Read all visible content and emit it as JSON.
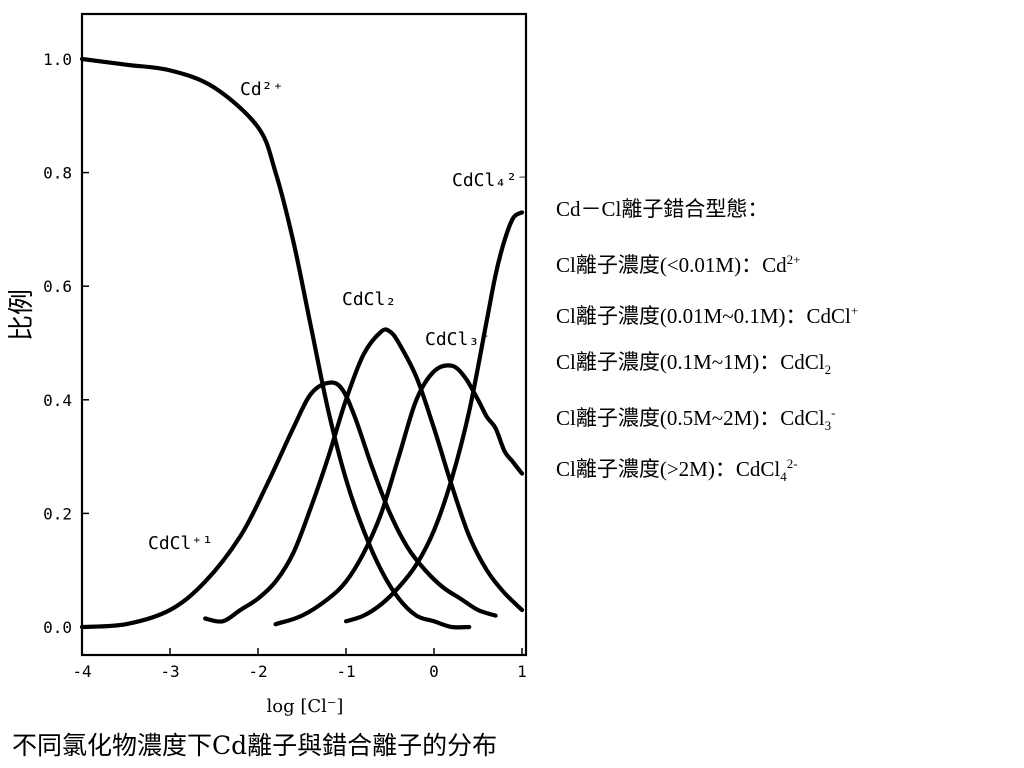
{
  "chart_data": {
    "type": "line",
    "title": "",
    "xlabel": "log [Cl⁻]",
    "ylabel": "比例",
    "xlim": [
      -4,
      1
    ],
    "ylim": [
      0,
      1.0
    ],
    "x_ticks": [
      -4,
      -3,
      -2,
      -1,
      0,
      1
    ],
    "x_tick_labels": [
      "-4",
      "-3",
      "-2",
      "-1",
      "0",
      "1"
    ],
    "y_ticks": [
      0,
      0.2,
      0.4,
      0.6,
      0.8,
      1.0
    ],
    "y_tick_labels": [
      "0.0",
      "0.2",
      "0.4",
      "0.6",
      "0.8",
      "1.0"
    ],
    "grid": false,
    "legend": "none",
    "series": [
      {
        "name": "Cd²⁺",
        "x": [
          -4,
          -3.5,
          -3,
          -2.5,
          -2,
          -1.8,
          -1.6,
          -1.4,
          -1.2,
          -1,
          -0.8,
          -0.6,
          -0.4,
          -0.2,
          0,
          0.2,
          0.4
        ],
        "y": [
          1.0,
          0.99,
          0.98,
          0.95,
          0.88,
          0.8,
          0.68,
          0.53,
          0.38,
          0.26,
          0.17,
          0.1,
          0.05,
          0.02,
          0.01,
          0.0,
          0.0
        ]
      },
      {
        "name": "CdCl⁺",
        "x": [
          -4,
          -3.5,
          -3,
          -2.6,
          -2.2,
          -1.9,
          -1.6,
          -1.4,
          -1.2,
          -1.05,
          -0.9,
          -0.7,
          -0.5,
          -0.3,
          -0.1,
          0.1,
          0.3,
          0.5,
          0.7
        ],
        "y": [
          0.0,
          0.005,
          0.03,
          0.08,
          0.16,
          0.25,
          0.35,
          0.41,
          0.43,
          0.42,
          0.37,
          0.28,
          0.2,
          0.14,
          0.1,
          0.07,
          0.05,
          0.03,
          0.02
        ]
      },
      {
        "name": "CdCl₂",
        "x": [
          -2.6,
          -2.4,
          -2.2,
          -2,
          -1.8,
          -1.6,
          -1.4,
          -1.2,
          -1,
          -0.8,
          -0.6,
          -0.5,
          -0.4,
          -0.2,
          0,
          0.2,
          0.4,
          0.6,
          0.8,
          1
        ],
        "y": [
          0.015,
          0.01,
          0.03,
          0.05,
          0.08,
          0.13,
          0.21,
          0.3,
          0.4,
          0.48,
          0.52,
          0.52,
          0.5,
          0.44,
          0.35,
          0.25,
          0.16,
          0.1,
          0.06,
          0.03
        ]
      },
      {
        "name": "CdCl₃⁻",
        "x": [
          -1.8,
          -1.5,
          -1.2,
          -1,
          -0.8,
          -0.6,
          -0.4,
          -0.2,
          0,
          0.2,
          0.35,
          0.5,
          0.6,
          0.7,
          0.8,
          0.9,
          1
        ],
        "y": [
          0.005,
          0.02,
          0.05,
          0.08,
          0.13,
          0.2,
          0.3,
          0.4,
          0.45,
          0.46,
          0.44,
          0.4,
          0.37,
          0.35,
          0.31,
          0.29,
          0.27
        ]
      },
      {
        "name": "CdCl₄²⁻",
        "x": [
          -1,
          -0.8,
          -0.6,
          -0.4,
          -0.2,
          0,
          0.2,
          0.4,
          0.6,
          0.7,
          0.8,
          0.9,
          1
        ],
        "y": [
          0.01,
          0.02,
          0.04,
          0.07,
          0.11,
          0.17,
          0.26,
          0.38,
          0.54,
          0.62,
          0.68,
          0.72,
          0.73
        ]
      }
    ],
    "annotations": [
      {
        "text": "Cd²⁺",
        "x": -2.2,
        "y": 0.93
      },
      {
        "text": "CdCl₂",
        "x": -1.05,
        "y": 0.56
      },
      {
        "text": "CdCl₃⁻",
        "x": -0.1,
        "y": 0.49
      },
      {
        "text": "CdCl₄²⁻",
        "x": 0.2,
        "y": 0.77
      },
      {
        "text": "CdCl⁺¹",
        "x": -3.25,
        "y": 0.13
      }
    ]
  },
  "notes": {
    "heading": "Cd－Cl離子錯合型態：",
    "lines": [
      {
        "prefix": "Cl離子濃度(<0.01M)：Cd",
        "sub": "",
        "sup": "2+"
      },
      {
        "prefix": "Cl離子濃度(0.01M~0.1M)：CdCl",
        "sub": "",
        "sup": "+"
      },
      {
        "prefix": "Cl離子濃度(0.1M~1M)：CdCl",
        "sub": "2",
        "sup": ""
      },
      {
        "prefix": "Cl離子濃度(0.5M~2M)：CdCl",
        "sub": "3",
        "sup": "-"
      },
      {
        "prefix": "Cl離子濃度(>2M)：CdCl",
        "sub": "4",
        "sup": "2-"
      }
    ]
  },
  "caption": "不同氯化物濃度下Cd離子與錯合離子的分布"
}
